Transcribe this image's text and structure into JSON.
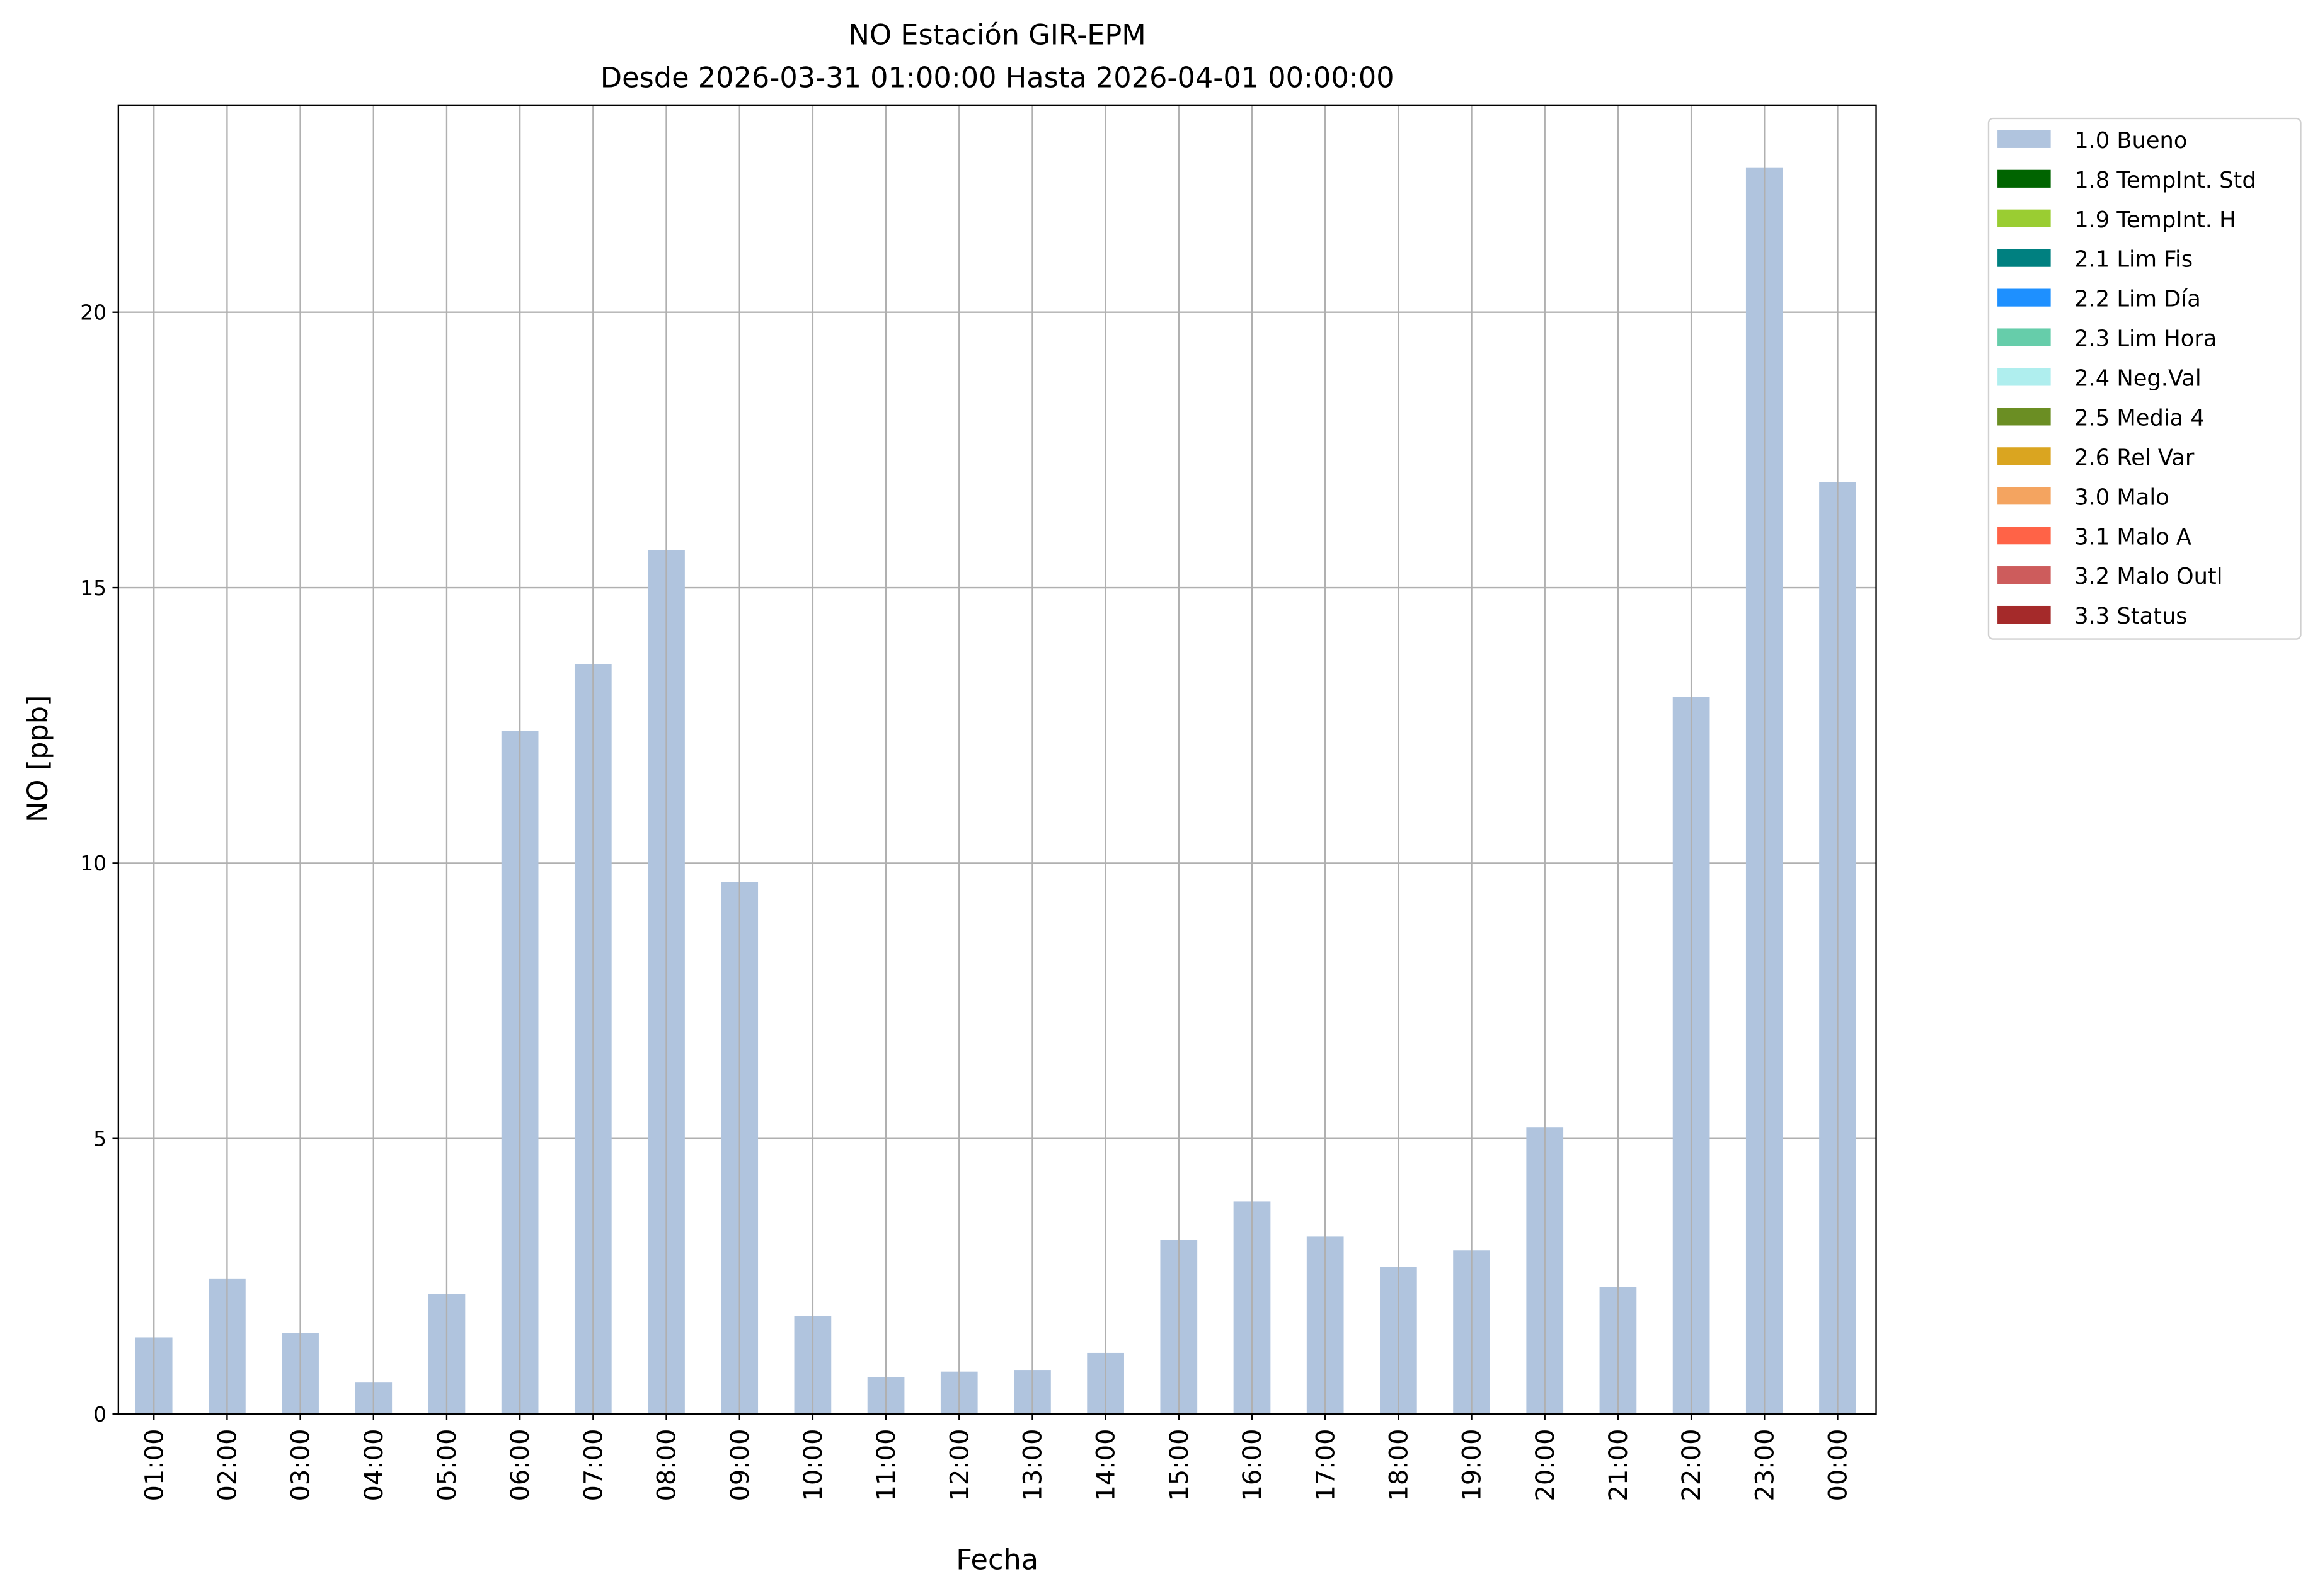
{
  "chart_data": {
    "type": "bar",
    "title": "NO Estación GIR-EPM",
    "subtitle": "Desde 2026-03-31 01:00:00 Hasta 2026-04-01 00:00:00",
    "xlabel": "Fecha",
    "ylabel": "NO [ppb]",
    "ylim": [
      0,
      23.76
    ],
    "yticks": [
      0,
      5,
      10,
      15,
      20
    ],
    "grid": true,
    "legend_placement": "outside-top-right",
    "categories": [
      "01:00",
      "02:00",
      "03:00",
      "04:00",
      "05:00",
      "06:00",
      "07:00",
      "08:00",
      "09:00",
      "10:00",
      "11:00",
      "12:00",
      "13:00",
      "14:00",
      "15:00",
      "16:00",
      "17:00",
      "18:00",
      "19:00",
      "20:00",
      "21:00",
      "22:00",
      "23:00",
      "00:00"
    ],
    "series": [
      {
        "name": "1.0 Bueno",
        "color": "#b0c4de",
        "values": [
          1.39,
          2.46,
          1.47,
          0.57,
          2.18,
          12.4,
          13.61,
          15.68,
          9.66,
          1.78,
          0.67,
          0.77,
          0.8,
          1.11,
          3.16,
          3.86,
          3.22,
          2.67,
          2.97,
          5.2,
          2.3,
          13.02,
          22.63,
          16.91
        ]
      }
    ],
    "legend": [
      {
        "label": "1.0 Bueno",
        "color": "#b0c4de"
      },
      {
        "label": "1.8 TempInt. Std",
        "color": "#006400"
      },
      {
        "label": "1.9 TempInt. H",
        "color": "#9acd32"
      },
      {
        "label": "2.1 Lim Fis",
        "color": "#008080"
      },
      {
        "label": "2.2 Lim Día",
        "color": "#1e90ff"
      },
      {
        "label": "2.3 Lim Hora",
        "color": "#66cdaa"
      },
      {
        "label": "2.4 Neg.Val",
        "color": "#afeeee"
      },
      {
        "label": "2.5 Media 4",
        "color": "#6b8e23"
      },
      {
        "label": "2.6 Rel Var",
        "color": "#daa520"
      },
      {
        "label": "3.0 Malo",
        "color": "#f4a460"
      },
      {
        "label": "3.1 Malo A",
        "color": "#ff6347"
      },
      {
        "label": "3.2 Malo Outl",
        "color": "#cd5c5c"
      },
      {
        "label": "3.3 Status",
        "color": "#a52a2a"
      }
    ]
  }
}
